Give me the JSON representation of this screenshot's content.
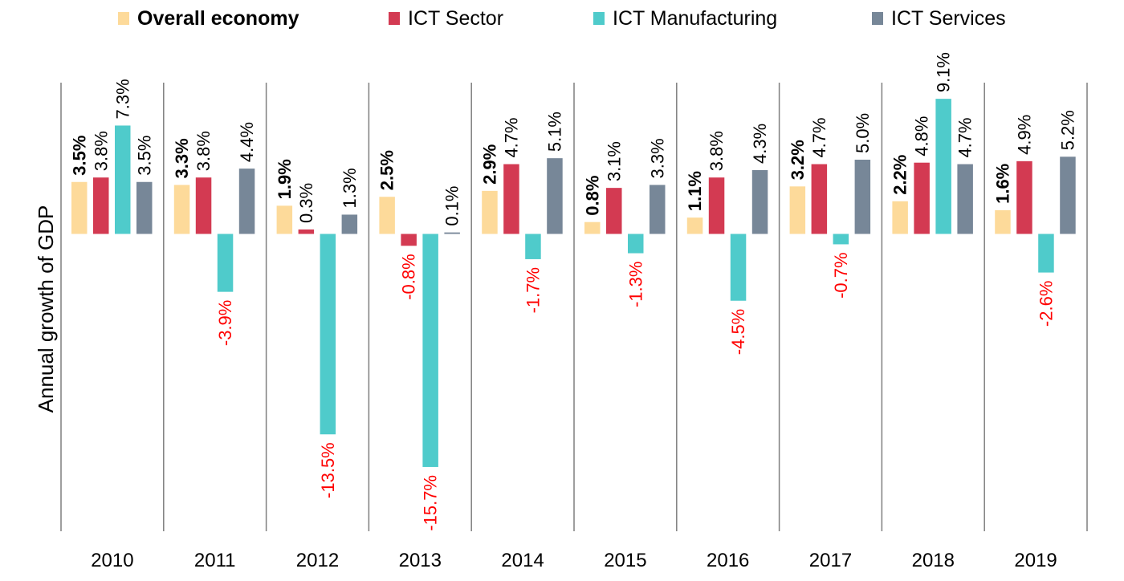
{
  "chart_data": {
    "type": "bar",
    "title": "",
    "xlabel": "",
    "ylabel": "Annual growth of GDP",
    "ylim": [
      -16.0,
      9.5
    ],
    "grid": false,
    "legend_position": "top",
    "categories": [
      "2010",
      "2011",
      "2012",
      "2013",
      "2014",
      "2015",
      "2016",
      "2017",
      "2018",
      "2019"
    ],
    "series": [
      {
        "name": "Overall economy",
        "color": "#FDDA9A",
        "label_bold": true,
        "values": [
          3.5,
          3.3,
          1.9,
          2.5,
          2.9,
          0.8,
          1.1,
          3.2,
          2.2,
          1.6
        ],
        "labels": [
          "3.5%",
          "3.3%",
          "1.9%",
          "2.5%",
          "2.9%",
          "0.8%",
          "1.1%",
          "3.2%",
          "2.2%",
          "1.6%"
        ]
      },
      {
        "name": "ICT Sector",
        "color": "#D33A52",
        "label_bold": false,
        "values": [
          3.8,
          3.8,
          0.3,
          -0.8,
          4.7,
          3.1,
          3.8,
          4.7,
          4.8,
          4.9
        ],
        "labels": [
          "3.8%",
          "3.8%",
          "0.3%",
          "-0.8%",
          "4.7%",
          "3.1%",
          "3.8%",
          "4.7%",
          "4.8%",
          "4.9%"
        ]
      },
      {
        "name": "ICT Manufacturing",
        "color": "#4FCBCB",
        "label_bold": false,
        "values": [
          7.3,
          -3.9,
          -13.5,
          -15.7,
          -1.7,
          -1.3,
          -4.5,
          -0.7,
          9.1,
          -2.6
        ],
        "labels": [
          "7.3%",
          "-3.9%",
          "-13.5%",
          "-15.7%",
          "-1.7%",
          "-1.3%",
          "-4.5%",
          "-0.7%",
          "9.1%",
          "-2.6%"
        ]
      },
      {
        "name": "ICT Services",
        "color": "#778798",
        "label_bold": false,
        "values": [
          3.5,
          4.4,
          1.3,
          0.1,
          5.1,
          3.3,
          4.3,
          5.0,
          4.7,
          5.2
        ],
        "labels": [
          "3.5%",
          "4.4%",
          "1.3%",
          "0.1%",
          "5.1%",
          "3.3%",
          "4.3%",
          "5.0%",
          "4.7%",
          "5.2%"
        ]
      }
    ],
    "positive_label_color": "#000000",
    "negative_label_color": "#FF0000"
  }
}
